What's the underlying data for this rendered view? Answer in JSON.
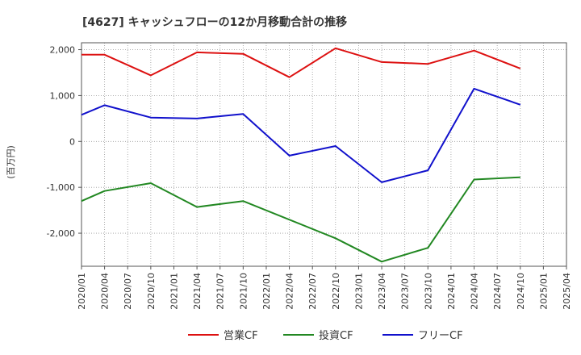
{
  "chart_data": {
    "type": "line",
    "title": "[4627]  キャッシュフローの12か月移動合計の推移",
    "ylabel": "(百万円)",
    "xlabel": "",
    "x_ticks": [
      "2020/01",
      "2020/04",
      "2020/07",
      "2020/10",
      "2021/01",
      "2021/04",
      "2021/07",
      "2021/10",
      "2022/01",
      "2022/04",
      "2022/07",
      "2022/10",
      "2023/01",
      "2023/04",
      "2023/07",
      "2023/10",
      "2024/01",
      "2024/04",
      "2024/07",
      "2024/10",
      "2025/01",
      "2025/04"
    ],
    "ylim": [
      -2720,
      2150
    ],
    "y_ticks": [
      2000,
      1000,
      0,
      -1000,
      -2000
    ],
    "y_tick_labels": [
      "2,000",
      "1,000",
      "0",
      "-1,000",
      "-2,000"
    ],
    "grid": true,
    "legend_position": "bottom",
    "series": [
      {
        "name": "営業CF",
        "color": "#dd1111",
        "x": [
          "2020/01",
          "2020/04",
          "2020/10",
          "2021/04",
          "2021/10",
          "2022/04",
          "2022/10",
          "2023/04",
          "2023/10",
          "2024/04",
          "2024/10"
        ],
        "values": [
          1890,
          1890,
          1440,
          1940,
          1910,
          1400,
          2030,
          1730,
          1690,
          1980,
          1590
        ]
      },
      {
        "name": "投資CF",
        "color": "#228822",
        "x": [
          "2020/01",
          "2020/04",
          "2020/10",
          "2021/04",
          "2021/10",
          "2022/10",
          "2023/04",
          "2023/10",
          "2024/04",
          "2024/10"
        ],
        "values": [
          -1300,
          -1080,
          -910,
          -1430,
          -1300,
          -2110,
          -2620,
          -2320,
          -830,
          -780
        ]
      },
      {
        "name": "フリーCF",
        "color": "#1111cc",
        "x": [
          "2020/01",
          "2020/04",
          "2020/10",
          "2021/04",
          "2021/10",
          "2022/04",
          "2022/10",
          "2023/04",
          "2023/10",
          "2024/04",
          "2024/10"
        ],
        "values": [
          580,
          790,
          520,
          500,
          600,
          -310,
          -100,
          -890,
          -630,
          1150,
          800
        ]
      }
    ]
  }
}
